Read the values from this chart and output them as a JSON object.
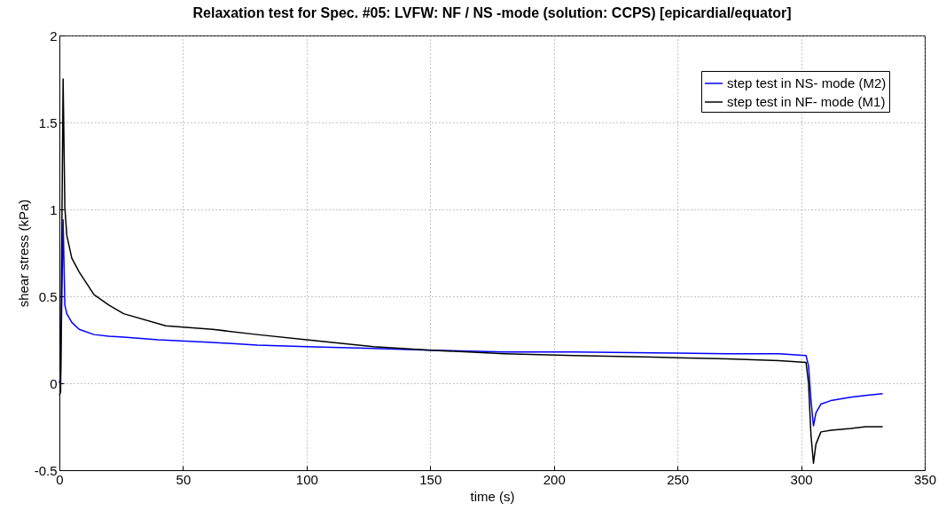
{
  "chart_data": {
    "type": "line",
    "title": "Relaxation test for Spec. #05: LVFW: NF / NS -mode (solution: CCPS) [epicardial/equator]",
    "xlabel": "time (s)",
    "ylabel": "shear stress (kPa)",
    "xlim": [
      0,
      350
    ],
    "xticks": [
      0,
      50,
      100,
      150,
      200,
      250,
      300,
      350
    ],
    "ylim": [
      -0.5,
      2
    ],
    "yticks": [
      -0.5,
      0,
      0.5,
      1,
      1.5,
      2
    ],
    "grid": true,
    "legend": "top right",
    "line_style": "solid",
    "marker": "none",
    "series": [
      {
        "name": "step test in NS- mode (M2)",
        "color": "#0000ff",
        "x": [
          0,
          0.5,
          1,
          1.5,
          2.2,
          3,
          5,
          8,
          14,
          20,
          26,
          40,
          62,
          80,
          100,
          127,
          150,
          180,
          208,
          240,
          270,
          291,
          302,
          303,
          304,
          305,
          306,
          308,
          312,
          320,
          326,
          333
        ],
        "values": [
          0,
          0.05,
          0.5,
          0.94,
          0.45,
          0.4,
          0.35,
          0.31,
          0.28,
          0.27,
          0.265,
          0.25,
          0.235,
          0.22,
          0.21,
          0.2,
          0.19,
          0.18,
          0.18,
          0.175,
          0.17,
          0.17,
          0.16,
          0.1,
          -0.1,
          -0.245,
          -0.17,
          -0.12,
          -0.1,
          -0.08,
          -0.07,
          -0.06
        ]
      },
      {
        "name": "step test in NF- mode (M1)",
        "color": "#000000",
        "x": [
          0,
          0.5,
          1,
          1.5,
          2.2,
          3,
          5,
          8,
          14,
          20,
          26,
          43,
          62,
          80,
          100,
          127,
          150,
          180,
          208,
          240,
          270,
          291,
          302,
          303,
          304,
          305,
          306,
          308,
          312,
          320,
          326,
          333
        ],
        "values": [
          -0.07,
          -0.05,
          0.9,
          1.75,
          1.01,
          0.85,
          0.72,
          0.64,
          0.51,
          0.45,
          0.4,
          0.33,
          0.31,
          0.28,
          0.25,
          0.21,
          0.19,
          0.17,
          0.16,
          0.15,
          0.14,
          0.13,
          0.12,
          0,
          -0.3,
          -0.46,
          -0.35,
          -0.28,
          -0.27,
          -0.26,
          -0.25,
          -0.25
        ]
      }
    ]
  }
}
